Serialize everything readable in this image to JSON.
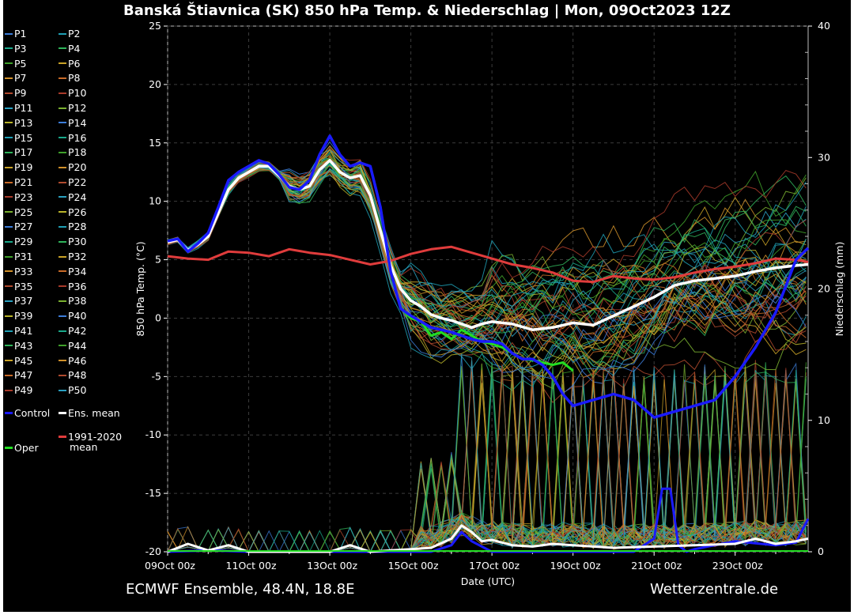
{
  "chart_data": {
    "type": "line",
    "title": "Banská Štiavnica  (SK)  850 hPa Temp. & Niederschlag | Mon, 09Oct2023 12Z",
    "xlabel": "Date (UTC)",
    "ylabel": "850 hPa Temp. (°C)",
    "y2label": "Niederschlag (mm)",
    "x_unit": "days since 09Oct 00z",
    "xlim": [
      0,
      15.8
    ],
    "ylim": [
      -20,
      25
    ],
    "y2lim": [
      0,
      40
    ],
    "x_ticks": [
      {
        "x": 0,
        "label": "09Oct 00z"
      },
      {
        "x": 2,
        "label": "11Oct 00z"
      },
      {
        "x": 4,
        "label": "13Oct 00z"
      },
      {
        "x": 6,
        "label": "15Oct 00z"
      },
      {
        "x": 8,
        "label": "17Oct 00z"
      },
      {
        "x": 10,
        "label": "19Oct 00z"
      },
      {
        "x": 12,
        "label": "21Oct 00z"
      },
      {
        "x": 14,
        "label": "23Oct 00z"
      }
    ],
    "y_ticks": [
      25,
      20,
      15,
      10,
      5,
      0,
      -5,
      -10,
      -15,
      -20
    ],
    "y2_ticks": [
      40,
      30,
      20,
      10,
      0
    ],
    "grid": true,
    "legend_placement": "left",
    "colors": {
      "background": "#000000",
      "grid": "#3c3c3c",
      "control": "#1a1aff",
      "ens_mean": "#ffffff",
      "climate": "#e03c3c",
      "oper": "#22dd22"
    },
    "member_palette": [
      "#3c7dd9",
      "#1f9fb4",
      "#1aa88a",
      "#2fb35a",
      "#3fa02a",
      "#c9a227",
      "#d0902a",
      "#c86a28",
      "#b04a2e",
      "#a83a2a",
      "#2aa0c0",
      "#7ab030",
      "#b9b42a"
    ],
    "series": [
      {
        "name": "Oper",
        "axis": "temp",
        "x": [
          0,
          0.25,
          0.5,
          0.75,
          1,
          1.25,
          1.5,
          1.75,
          2,
          2.25,
          2.5,
          2.75,
          3,
          3.25,
          3.5,
          3.75,
          4,
          4.25,
          4.5,
          4.75,
          5,
          5.25,
          5.5,
          5.75,
          6,
          6.25,
          6.5,
          6.75,
          7,
          7.25,
          7.5,
          7.75,
          8,
          8.25,
          8.5,
          8.75,
          9,
          9.25,
          9.5,
          9.75,
          10
        ],
        "values": [
          6.6,
          6.8,
          5.7,
          6.4,
          7.3,
          9.5,
          11.8,
          12.5,
          13.0,
          13.5,
          13.2,
          12.3,
          11.2,
          11.0,
          11.8,
          14.0,
          15.6,
          14.0,
          13.0,
          13.3,
          13.0,
          9.5,
          4.0,
          0.8,
          0.0,
          -0.3,
          -1.5,
          -1.2,
          -1.8,
          -1.0,
          -1.5,
          -2.0,
          -2.2,
          -2.5,
          -3.0,
          -3.5,
          -3.6,
          -3.8,
          -4.0,
          -3.8,
          -4.5
        ]
      },
      {
        "name": "Control",
        "axis": "temp",
        "x": [
          0,
          0.25,
          0.5,
          0.75,
          1,
          1.25,
          1.5,
          1.75,
          2,
          2.25,
          2.5,
          2.75,
          3,
          3.25,
          3.5,
          3.75,
          4,
          4.25,
          4.5,
          4.75,
          5,
          5.25,
          5.5,
          5.75,
          6,
          6.25,
          6.5,
          6.75,
          7,
          7.25,
          7.5,
          7.75,
          8,
          8.25,
          8.5,
          8.75,
          9,
          9.25,
          9.5,
          9.75,
          10,
          10.5,
          11,
          11.5,
          12,
          12.5,
          13,
          13.5,
          14,
          14.5,
          15,
          15.5,
          15.8
        ],
        "values": [
          6.6,
          6.8,
          5.7,
          6.4,
          7.3,
          9.5,
          11.8,
          12.5,
          13.0,
          13.5,
          13.2,
          12.3,
          11.2,
          11.0,
          11.8,
          14.0,
          15.6,
          14.0,
          13.0,
          13.3,
          13.0,
          9.5,
          4.0,
          0.8,
          0.2,
          -0.3,
          -0.8,
          -1.0,
          -1.2,
          -1.5,
          -1.8,
          -2.0,
          -2.0,
          -2.2,
          -3.0,
          -3.5,
          -3.5,
          -4.0,
          -5.0,
          -6.5,
          -7.5,
          -7.0,
          -6.5,
          -7.0,
          -8.5,
          -8.0,
          -7.5,
          -7.0,
          -5.0,
          -2.5,
          0.5,
          5.0,
          6.0
        ]
      },
      {
        "name": "Ens. mean",
        "axis": "temp",
        "x": [
          0,
          0.25,
          0.5,
          0.75,
          1,
          1.25,
          1.5,
          1.75,
          2,
          2.25,
          2.5,
          2.75,
          3,
          3.25,
          3.5,
          3.75,
          4,
          4.25,
          4.5,
          4.75,
          5,
          5.25,
          5.5,
          5.75,
          6,
          6.25,
          6.5,
          6.75,
          7,
          7.25,
          7.5,
          7.75,
          8,
          8.5,
          9,
          9.5,
          10,
          10.5,
          11,
          11.5,
          12,
          12.5,
          13,
          13.5,
          14,
          14.5,
          15,
          15.5,
          15.8
        ],
        "values": [
          6.5,
          6.7,
          5.8,
          6.3,
          7.0,
          9.0,
          11.0,
          12.0,
          12.5,
          13.0,
          13.0,
          12.2,
          11.3,
          11.0,
          11.3,
          12.7,
          13.5,
          12.5,
          12.0,
          12.2,
          10.5,
          7.5,
          4.5,
          2.5,
          1.5,
          1.0,
          0.3,
          0.0,
          -0.2,
          -0.5,
          -0.8,
          -0.5,
          -0.3,
          -0.5,
          -1.0,
          -0.8,
          -0.4,
          -0.6,
          0.2,
          1.0,
          1.8,
          2.8,
          3.2,
          3.4,
          3.6,
          4.0,
          4.3,
          4.5,
          4.6
        ]
      },
      {
        "name": "1991-2020 mean",
        "axis": "temp",
        "x": [
          0,
          0.5,
          1,
          1.5,
          2,
          2.5,
          3,
          3.5,
          4,
          4.5,
          5,
          5.5,
          6,
          6.5,
          7,
          7.5,
          8,
          8.5,
          9,
          9.5,
          10,
          10.5,
          11,
          11.5,
          12,
          12.5,
          13,
          13.5,
          14,
          14.5,
          15,
          15.5,
          15.8
        ],
        "values": [
          5.3,
          5.1,
          5.0,
          5.7,
          5.6,
          5.3,
          5.9,
          5.6,
          5.4,
          5.0,
          4.6,
          4.9,
          5.5,
          5.9,
          6.1,
          5.6,
          5.1,
          4.6,
          4.3,
          3.9,
          3.2,
          3.1,
          3.6,
          3.4,
          3.3,
          3.5,
          3.9,
          4.2,
          4.4,
          4.7,
          5.1,
          5.0,
          4.8
        ]
      },
      {
        "name": "Control precip",
        "axis": "precip",
        "x": [
          0,
          1,
          2,
          3,
          4,
          5,
          6,
          6.5,
          7,
          7.25,
          7.5,
          8,
          9,
          10,
          11,
          11.5,
          12,
          12.2,
          12.4,
          12.6,
          12.8,
          13,
          14,
          15,
          15.5,
          15.8
        ],
        "values": [
          0,
          0.1,
          0,
          0,
          0,
          0,
          0,
          0,
          0.5,
          1.5,
          0.8,
          0,
          0,
          0,
          0,
          0,
          1.0,
          4.8,
          4.8,
          0.5,
          0,
          0.2,
          0.8,
          0.5,
          0.7,
          2.5
        ]
      },
      {
        "name": "Ens. mean precip",
        "axis": "precip",
        "x": [
          0,
          0.5,
          1,
          1.5,
          2,
          3,
          4,
          4.5,
          5,
          5.5,
          6,
          6.5,
          7,
          7.25,
          7.5,
          7.75,
          8,
          8.5,
          9,
          9.5,
          10,
          11,
          12,
          13,
          14,
          14.5,
          15,
          15.5,
          15.8
        ],
        "values": [
          0,
          0.6,
          0.1,
          0.5,
          0,
          0,
          0,
          0.5,
          0,
          0.1,
          0.2,
          0.3,
          1.0,
          2.0,
          1.5,
          0.8,
          0.9,
          0.5,
          0.4,
          0.6,
          0.5,
          0.3,
          0.4,
          0.5,
          0.6,
          1.0,
          0.6,
          0.8,
          1.0
        ]
      }
    ],
    "legend": {
      "members": [
        "P1",
        "P2",
        "P3",
        "P4",
        "P5",
        "P6",
        "P7",
        "P8",
        "P9",
        "P10",
        "P11",
        "P12",
        "P13",
        "P14",
        "P15",
        "P16",
        "P17",
        "P18",
        "P19",
        "P20",
        "P21",
        "P22",
        "P23",
        "P24",
        "P25",
        "P26",
        "P27",
        "P28",
        "P29",
        "P30",
        "P31",
        "P32",
        "P33",
        "P34",
        "P35",
        "P36",
        "P37",
        "P38",
        "P39",
        "P40",
        "P41",
        "P42",
        "P43",
        "P44",
        "P45",
        "P46",
        "P47",
        "P48",
        "P49",
        "P50"
      ],
      "control_label": "Control",
      "ens_mean_label": "Ens. mean",
      "climate_label_line1": "1991-2020",
      "climate_label_line2": "mean",
      "oper_label": "Oper"
    }
  },
  "footer": {
    "left": "ECMWF Ensemble, 48.4N, 18.8E",
    "right": "Wetterzentrale.de"
  }
}
